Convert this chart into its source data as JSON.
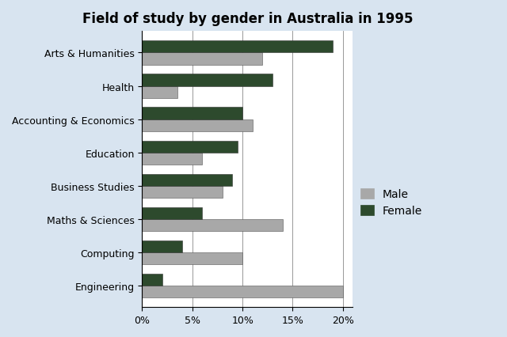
{
  "title": "Field of study by gender in Australia in 1995",
  "categories": [
    "Arts & Humanities",
    "Health",
    "Accounting & Economics",
    "Education",
    "Business Studies",
    "Maths & Sciences",
    "Computing",
    "Engineering"
  ],
  "male_values": [
    12,
    3.5,
    11,
    6,
    8,
    14,
    10,
    20
  ],
  "female_values": [
    19,
    13,
    10,
    9.5,
    9,
    6,
    4,
    2
  ],
  "male_color": "#a8a8a8",
  "female_color": "#2d4a2d",
  "background_color": "#d8e4f0",
  "plot_bg_color": "#ffffff",
  "bar_height": 0.36,
  "xlim": [
    0,
    21
  ],
  "xticks": [
    0,
    5,
    10,
    15,
    20
  ],
  "xticklabels": [
    "0%",
    "5%",
    "10%",
    "15%",
    "20%"
  ],
  "legend_labels": [
    "Male",
    "Female"
  ],
  "title_fontsize": 12,
  "tick_fontsize": 9,
  "label_fontsize": 9
}
